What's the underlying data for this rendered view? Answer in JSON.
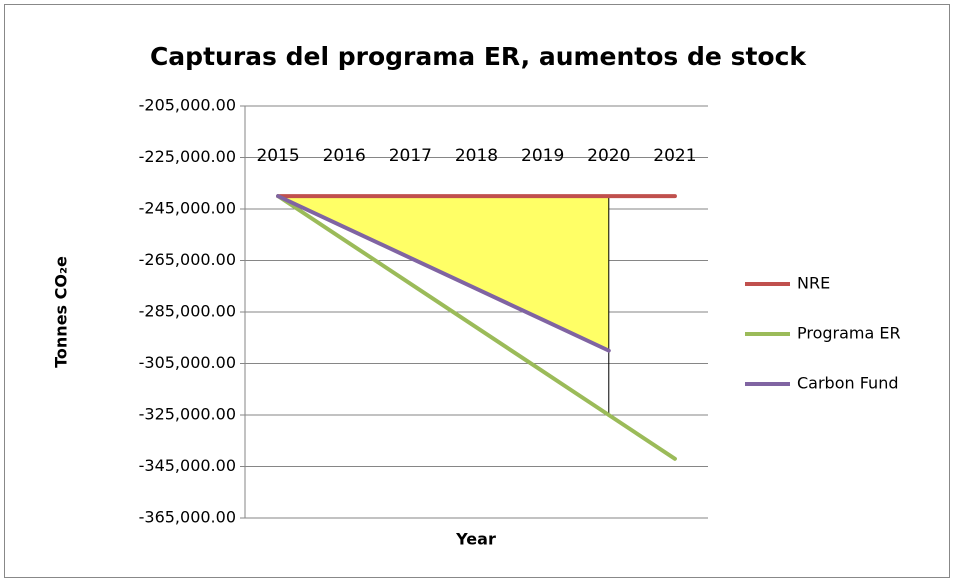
{
  "chart_data": {
    "type": "line",
    "title": "Capturas del programa ER, aumentos de stock",
    "xlabel": "Year",
    "ylabel": "Tonnes CO₂e",
    "categories": [
      "2015",
      "2016",
      "2017",
      "2018",
      "2019",
      "2020",
      "2021"
    ],
    "series": [
      {
        "name": "NRE",
        "color": "#c0504d",
        "values": [
          -240000,
          -240000,
          -240000,
          -240000,
          -240000,
          -240000,
          -240000
        ]
      },
      {
        "name": "Programa ER",
        "color": "#9bbb59",
        "values": [
          -240000,
          -257000,
          -274000,
          -291000,
          -308000,
          -325000,
          -342000
        ]
      },
      {
        "name": "Carbon Fund",
        "color": "#8064a2",
        "values": [
          -240000,
          -252000,
          -264000,
          -276000,
          -288000,
          -300000,
          null
        ]
      }
    ],
    "ylim": [
      -365000,
      -205000
    ],
    "yticks": [
      {
        "value": -205000,
        "label": "-205,000.00"
      },
      {
        "value": -225000,
        "label": "-225,000.00"
      },
      {
        "value": -245000,
        "label": "-245,000.00"
      },
      {
        "value": -265000,
        "label": "-265,000.00"
      },
      {
        "value": -285000,
        "label": "-285,000.00"
      },
      {
        "value": -305000,
        "label": "-305,000.00"
      },
      {
        "value": -325000,
        "label": "-325,000.00"
      },
      {
        "value": -345000,
        "label": "-345,000.00"
      },
      {
        "value": -365000,
        "label": "-365,000.00"
      }
    ],
    "grid": true,
    "legend": "right",
    "fill_color": "#ffff66"
  }
}
